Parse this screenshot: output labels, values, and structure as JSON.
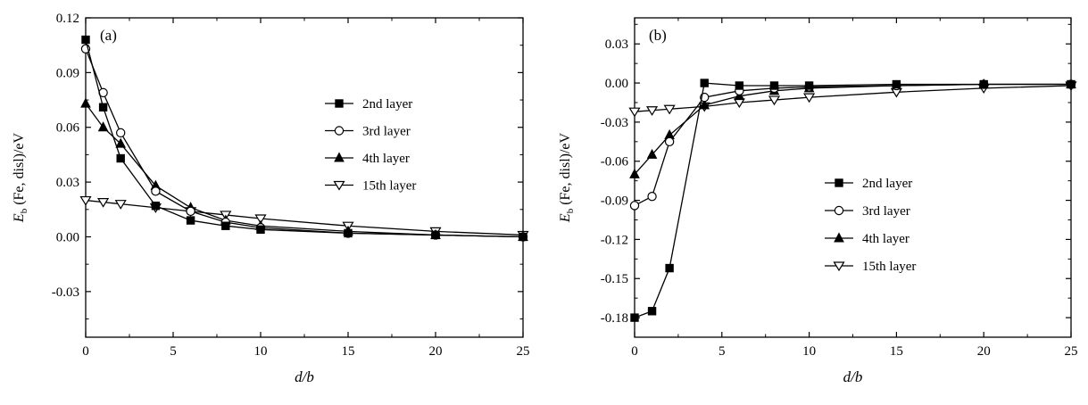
{
  "chart_data": [
    {
      "type": "line",
      "panel_label": "(a)",
      "xlabel": "d/b",
      "ylabel_main": "E",
      "ylabel_sub": "b",
      "ylabel_rest": " (Fe, disl)/eV",
      "xlim": [
        0,
        25
      ],
      "ylim": [
        -0.055,
        0.12
      ],
      "xticks": [
        0,
        5,
        10,
        15,
        20,
        25
      ],
      "yticks": [
        -0.03,
        0.0,
        0.03,
        0.06,
        0.09,
        0.12
      ],
      "ytick_labels": [
        "-0.03",
        "0.00",
        "0.03",
        "0.06",
        "0.09",
        "0.12"
      ],
      "legend_position": "right",
      "series": [
        {
          "name": "2nd layer",
          "marker": "filled-square",
          "x": [
            0,
            1,
            2,
            4,
            6,
            8,
            10,
            15,
            20,
            25
          ],
          "y": [
            0.108,
            0.071,
            0.043,
            0.017,
            0.009,
            0.006,
            0.004,
            0.002,
            0.001,
            0.0
          ]
        },
        {
          "name": "3rd layer",
          "marker": "open-circle",
          "x": [
            0,
            1,
            2,
            4,
            6,
            8,
            10,
            15,
            20,
            25
          ],
          "y": [
            0.103,
            0.079,
            0.057,
            0.025,
            0.014,
            0.008,
            0.005,
            0.002,
            0.001,
            0.0
          ]
        },
        {
          "name": "4th layer",
          "marker": "filled-triangle-up",
          "x": [
            0,
            1,
            2,
            4,
            6,
            8,
            10,
            15,
            20,
            25
          ],
          "y": [
            0.073,
            0.06,
            0.051,
            0.028,
            0.016,
            0.009,
            0.006,
            0.003,
            0.001,
            0.0
          ]
        },
        {
          "name": "15th layer",
          "marker": "open-triangle-down",
          "x": [
            0,
            1,
            2,
            4,
            6,
            8,
            10,
            15,
            20,
            25
          ],
          "y": [
            0.02,
            0.019,
            0.018,
            0.016,
            0.014,
            0.012,
            0.01,
            0.006,
            0.003,
            0.001
          ]
        }
      ]
    },
    {
      "type": "line",
      "panel_label": "(b)",
      "xlabel": "d/b",
      "ylabel_main": "E",
      "ylabel_sub": "b",
      "ylabel_rest": " (Fe, disl)/eV",
      "xlim": [
        0,
        25
      ],
      "ylim": [
        -0.195,
        0.05
      ],
      "xticks": [
        0,
        5,
        10,
        15,
        20,
        25
      ],
      "yticks": [
        -0.18,
        -0.15,
        -0.12,
        -0.09,
        -0.06,
        -0.03,
        0.0,
        0.03
      ],
      "ytick_labels": [
        "-0.18",
        "-0.15",
        "-0.12",
        "-0.09",
        "-0.06",
        "-0.03",
        "0.00",
        "0.03"
      ],
      "legend_position": "lower-right",
      "series": [
        {
          "name": "2nd layer",
          "marker": "filled-square",
          "x": [
            0,
            1,
            2,
            4,
            6,
            8,
            10,
            15,
            20,
            25
          ],
          "y": [
            -0.18,
            -0.175,
            -0.142,
            0.0,
            -0.002,
            -0.002,
            -0.002,
            -0.001,
            -0.001,
            -0.001
          ]
        },
        {
          "name": "3rd layer",
          "marker": "open-circle",
          "x": [
            0,
            1,
            2,
            4,
            6,
            8,
            10,
            15,
            20,
            25
          ],
          "y": [
            -0.094,
            -0.087,
            -0.045,
            -0.011,
            -0.006,
            -0.004,
            -0.003,
            -0.002,
            -0.001,
            -0.001
          ]
        },
        {
          "name": "4th layer",
          "marker": "filled-triangle-up",
          "x": [
            0,
            1,
            2,
            4,
            6,
            8,
            10,
            15,
            20,
            25
          ],
          "y": [
            -0.07,
            -0.055,
            -0.04,
            -0.017,
            -0.01,
            -0.006,
            -0.004,
            -0.002,
            -0.001,
            -0.001
          ]
        },
        {
          "name": "15th layer",
          "marker": "open-triangle-down",
          "x": [
            0,
            1,
            2,
            4,
            6,
            8,
            10,
            15,
            20,
            25
          ],
          "y": [
            -0.022,
            -0.021,
            -0.02,
            -0.018,
            -0.015,
            -0.013,
            -0.011,
            -0.007,
            -0.004,
            -0.002
          ]
        }
      ]
    }
  ]
}
